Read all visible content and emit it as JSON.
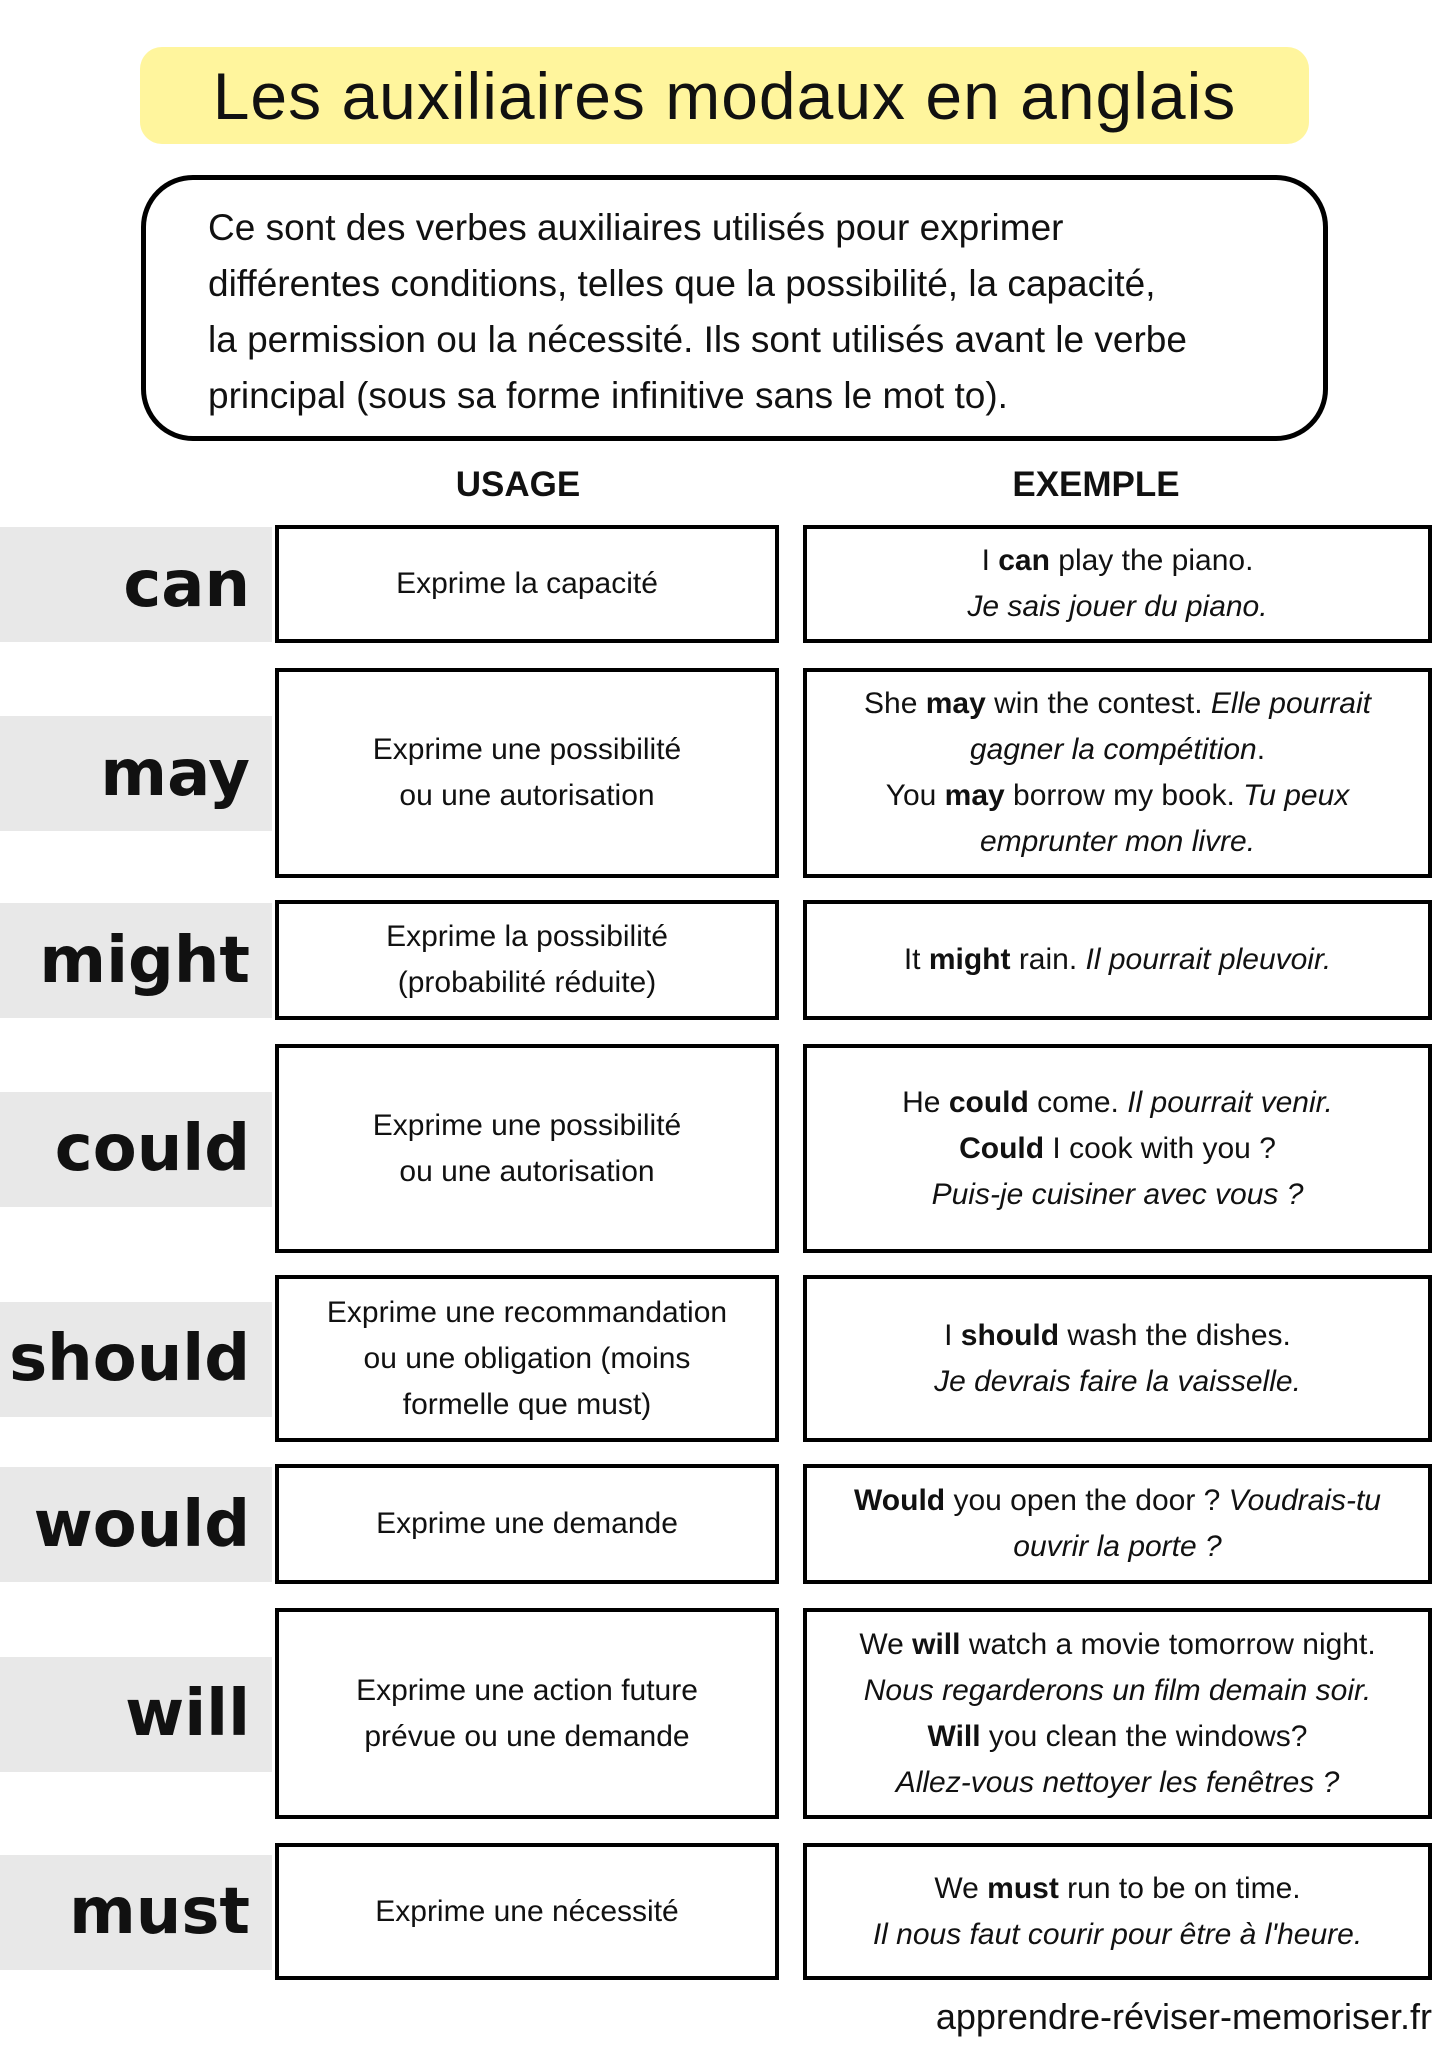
{
  "title": "Les auxiliaires modaux en anglais",
  "description": [
    "Ce sont des verbes auxiliaires utilisés pour exprimer",
    "différentes conditions, telles que la possibilité, la capacité,",
    "la permission ou la nécessité. Ils sont utilisés avant le verbe",
    "principal (sous sa forme infinitive sans le mot to)."
  ],
  "headers": {
    "usage": "USAGE",
    "example": "EXEMPLE"
  },
  "colors": {
    "title_bg": "#fff59d",
    "label_bg": "#e8e8e8"
  },
  "rows": [
    {
      "modal": "can",
      "usage": [
        "Exprime la capacité"
      ],
      "example": [
        [
          [
            "I ",
            ""
          ],
          [
            "can",
            "b"
          ],
          [
            " play the piano.",
            ""
          ]
        ],
        [
          [
            "Je sais jouer du piano.",
            "i"
          ]
        ]
      ]
    },
    {
      "modal": "may",
      "usage": [
        "Exprime une possibilité",
        "ou une autorisation"
      ],
      "example": [
        [
          [
            "She ",
            ""
          ],
          [
            "may",
            "b"
          ],
          [
            " win the contest. ",
            ""
          ],
          [
            "Elle pourrait",
            "i"
          ]
        ],
        [
          [
            "gagner la compétition",
            "i"
          ],
          [
            ".",
            ""
          ]
        ],
        [
          [
            "You ",
            ""
          ],
          [
            "may",
            "b"
          ],
          [
            " borrow my book. ",
            ""
          ],
          [
            "Tu peux",
            "i"
          ]
        ],
        [
          [
            "emprunter mon livre.",
            "i"
          ]
        ]
      ]
    },
    {
      "modal": "might",
      "usage": [
        "Exprime la possibilité",
        "(probabilité réduite)"
      ],
      "example": [
        [
          [
            "It ",
            ""
          ],
          [
            "might",
            "b"
          ],
          [
            " rain. ",
            ""
          ],
          [
            "Il pourrait pleuvoir.",
            "i"
          ]
        ]
      ]
    },
    {
      "modal": "could",
      "usage": [
        "Exprime une possibilité",
        "ou une autorisation"
      ],
      "example": [
        [
          [
            "He ",
            ""
          ],
          [
            "could",
            "b"
          ],
          [
            " come. ",
            ""
          ],
          [
            "Il pourrait venir.",
            "i"
          ]
        ],
        [
          [
            "Could",
            "b"
          ],
          [
            " I cook with you ?",
            ""
          ]
        ],
        [
          [
            "Puis-je cuisiner avec vous ?",
            "i"
          ]
        ]
      ]
    },
    {
      "modal": "should",
      "usage": [
        "Exprime une recommandation",
        "ou une obligation (moins",
        "formelle que must)"
      ],
      "example": [
        [
          [
            "I ",
            ""
          ],
          [
            "should",
            "b"
          ],
          [
            " wash the dishes.",
            ""
          ]
        ],
        [
          [
            "Je devrais faire la vaisselle.",
            "i"
          ]
        ]
      ]
    },
    {
      "modal": "would",
      "usage": [
        "Exprime une demande"
      ],
      "example": [
        [
          [
            "Would",
            "b"
          ],
          [
            " you open the door ? ",
            ""
          ],
          [
            "Voudrais-tu",
            "i"
          ]
        ],
        [
          [
            "ouvrir la porte ?",
            "i"
          ]
        ]
      ]
    },
    {
      "modal": "will",
      "usage": [
        "Exprime une action future",
        "prévue ou une demande"
      ],
      "example": [
        [
          [
            "We ",
            ""
          ],
          [
            "will",
            "b"
          ],
          [
            " watch a movie tomorrow night.",
            ""
          ]
        ],
        [
          [
            "Nous regarderons un film demain soir.",
            "i"
          ]
        ],
        [
          [
            "Will",
            "b"
          ],
          [
            " you clean the windows?",
            ""
          ]
        ],
        [
          [
            "Allez-vous nettoyer les fenêtres ?",
            "i"
          ]
        ]
      ]
    },
    {
      "modal": "must",
      "usage": [
        "Exprime une nécessité"
      ],
      "example": [
        [
          [
            "We ",
            ""
          ],
          [
            "must",
            "b"
          ],
          [
            " run to be on time.",
            ""
          ]
        ],
        [
          [
            "Il nous faut courir pour être à l'heure.",
            "i"
          ]
        ]
      ]
    }
  ],
  "footer": "apprendre-réviser-memoriser.fr"
}
